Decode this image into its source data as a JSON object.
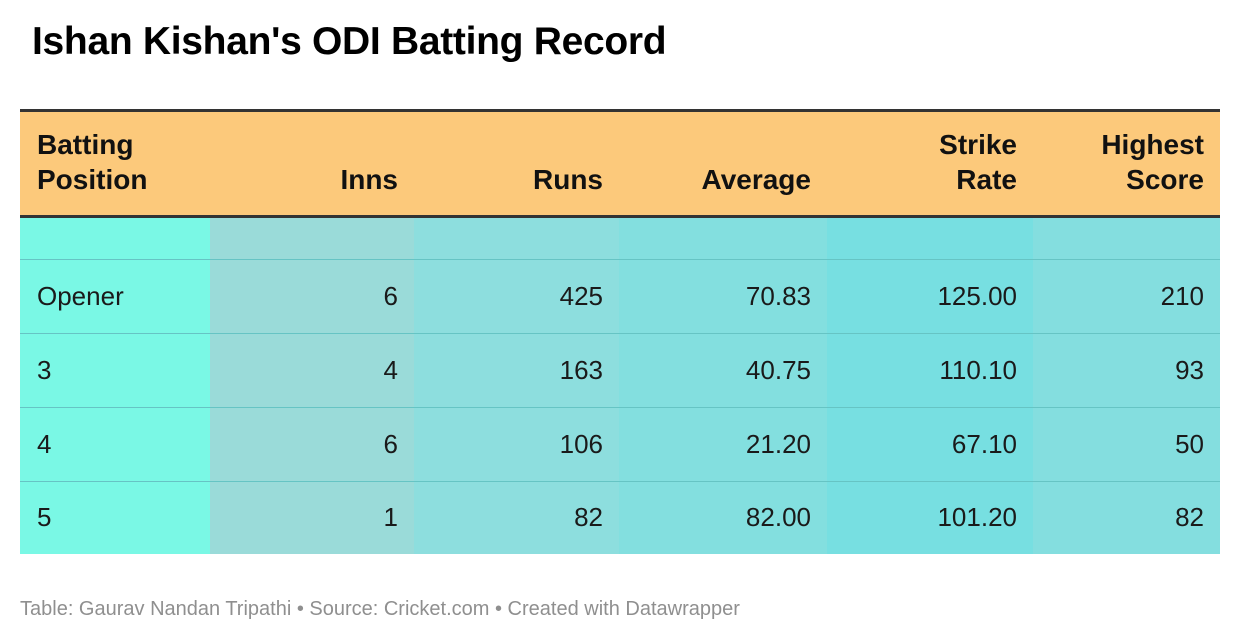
{
  "title": "Ishan Kishan's ODI Batting Record",
  "chart_data": {
    "type": "table",
    "title": "Ishan Kishan's ODI Batting Record",
    "columns": [
      {
        "line1": "Batting",
        "line2": "Position"
      },
      {
        "line1": "",
        "line2": "Inns"
      },
      {
        "line1": "",
        "line2": "Runs"
      },
      {
        "line1": "",
        "line2": "Average"
      },
      {
        "line1": "Strike",
        "line2": "Rate"
      },
      {
        "line1": "Highest",
        "line2": "Score"
      }
    ],
    "rows": [
      [
        "Opener",
        "6",
        "425",
        "70.83",
        "125.00",
        "210"
      ],
      [
        "3",
        "4",
        "163",
        "40.75",
        "110.10",
        "93"
      ],
      [
        "4",
        "6",
        "106",
        "21.20",
        "67.10",
        "50"
      ],
      [
        "5",
        "1",
        "82",
        "82.00",
        "101.20",
        "82"
      ]
    ],
    "header_color": "#fcc97b",
    "column_colors": [
      "#7af8e5",
      "#9adbd9",
      "#8ddede",
      "#83dfdf",
      "#77dfe1",
      "#84dedf"
    ]
  },
  "footer": "Table: Gaurav Nandan Tripathi • Source: Cricket.com • Created with Datawrapper"
}
